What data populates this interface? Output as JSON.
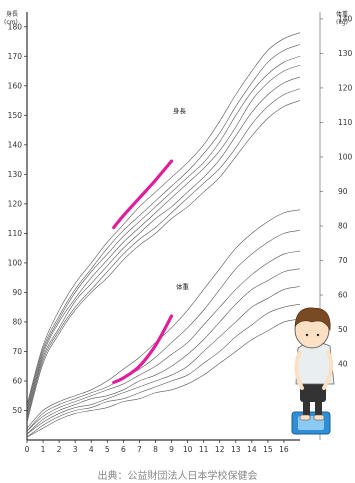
{
  "chart_data": {
    "type": "line",
    "x": {
      "ticks": [
        "0",
        "1",
        "2",
        "3",
        "4",
        "5",
        "6",
        "7",
        "8",
        "9",
        "10",
        "11",
        "12",
        "13",
        "14",
        "15",
        "16"
      ],
      "range": [
        0,
        17
      ]
    },
    "y_left": {
      "label_top": "身長",
      "label_unit": "(cm)",
      "ticks": [
        50,
        60,
        70,
        80,
        90,
        100,
        110,
        120,
        130,
        140,
        150,
        160,
        170,
        180
      ],
      "range": [
        40,
        185
      ]
    },
    "y_right": {
      "label_top": "体重",
      "label_unit": "(kg)",
      "ticks": [
        40,
        50,
        60,
        70,
        80,
        90,
        100,
        110,
        120,
        130,
        140
      ],
      "range": [
        18,
        142
      ]
    },
    "height_label": "身長",
    "weight_label": "体重",
    "colors": {
      "curve": "#555555",
      "highlight": "#e01e9a",
      "axis": "#333333"
    },
    "height_percentiles": [
      {
        "x": [
          0,
          1,
          2,
          3,
          4,
          5,
          6,
          7,
          8,
          9,
          10,
          11,
          12,
          13,
          14,
          15,
          16,
          17
        ],
        "y": [
          52,
          72,
          84,
          93,
          100,
          107,
          113,
          119,
          124,
          129,
          134,
          140,
          148,
          157,
          165,
          172,
          176,
          178
        ]
      },
      {
        "x": [
          0,
          1,
          2,
          3,
          4,
          5,
          6,
          7,
          8,
          9,
          10,
          11,
          12,
          13,
          14,
          15,
          16,
          17
        ],
        "y": [
          51,
          71,
          82,
          91,
          98,
          105,
          111,
          116,
          121,
          126,
          131,
          137,
          144,
          153,
          161,
          168,
          172,
          174
        ]
      },
      {
        "x": [
          0,
          1,
          2,
          3,
          4,
          5,
          6,
          7,
          8,
          9,
          10,
          11,
          12,
          13,
          14,
          15,
          16,
          17
        ],
        "y": [
          50,
          70,
          81,
          90,
          97,
          103,
          109,
          114,
          119,
          124,
          129,
          134,
          141,
          150,
          158,
          164,
          168,
          170
        ]
      },
      {
        "x": [
          0,
          1,
          2,
          3,
          4,
          5,
          6,
          7,
          8,
          9,
          10,
          11,
          12,
          13,
          14,
          15,
          16,
          17
        ],
        "y": [
          49,
          69,
          80,
          88,
          95,
          101,
          107,
          112,
          117,
          122,
          127,
          132,
          138,
          146,
          155,
          161,
          165,
          167
        ]
      },
      {
        "x": [
          0,
          1,
          2,
          3,
          4,
          5,
          6,
          7,
          8,
          9,
          10,
          11,
          12,
          13,
          14,
          15,
          16,
          17
        ],
        "y": [
          48,
          68,
          78,
          87,
          93,
          99,
          105,
          110,
          115,
          119,
          124,
          129,
          135,
          143,
          151,
          157,
          161,
          163
        ]
      },
      {
        "x": [
          0,
          1,
          2,
          3,
          4,
          5,
          6,
          7,
          8,
          9,
          10,
          11,
          12,
          13,
          14,
          15,
          16,
          17
        ],
        "y": [
          47,
          67,
          77,
          85,
          91,
          97,
          103,
          108,
          112,
          117,
          122,
          127,
          132,
          139,
          147,
          153,
          157,
          159
        ]
      },
      {
        "x": [
          0,
          1,
          2,
          3,
          4,
          5,
          6,
          7,
          8,
          9,
          10,
          11,
          12,
          13,
          14,
          15,
          16,
          17
        ],
        "y": [
          46,
          66,
          76,
          84,
          90,
          95,
          101,
          106,
          110,
          115,
          119,
          124,
          129,
          136,
          143,
          149,
          153,
          155
        ]
      }
    ],
    "weight_percentiles": [
      {
        "x": [
          0,
          1,
          2,
          3,
          4,
          5,
          6,
          7,
          8,
          9,
          10,
          11,
          12,
          13,
          14,
          15,
          16,
          17
        ],
        "y": [
          44,
          50,
          53,
          55,
          57,
          60,
          64,
          68,
          73,
          78,
          84,
          91,
          98,
          105,
          110,
          114,
          117,
          118
        ]
      },
      {
        "x": [
          0,
          1,
          2,
          3,
          4,
          5,
          6,
          7,
          8,
          9,
          10,
          11,
          12,
          13,
          14,
          15,
          16,
          17
        ],
        "y": [
          43,
          49,
          52,
          54,
          56,
          58,
          61,
          64,
          68,
          73,
          78,
          84,
          91,
          98,
          103,
          107,
          110,
          111
        ]
      },
      {
        "x": [
          0,
          1,
          2,
          3,
          4,
          5,
          6,
          7,
          8,
          9,
          10,
          11,
          12,
          13,
          14,
          15,
          16,
          17
        ],
        "y": [
          43,
          48,
          51,
          53,
          55,
          57,
          59,
          62,
          65,
          69,
          73,
          79,
          85,
          91,
          96,
          100,
          103,
          104
        ]
      },
      {
        "x": [
          0,
          1,
          2,
          3,
          4,
          5,
          6,
          7,
          8,
          9,
          10,
          11,
          12,
          13,
          14,
          15,
          16,
          17
        ],
        "y": [
          42,
          47,
          50,
          52,
          54,
          55,
          57,
          60,
          62,
          65,
          69,
          74,
          80,
          86,
          91,
          94,
          97,
          98
        ]
      },
      {
        "x": [
          0,
          1,
          2,
          3,
          4,
          5,
          6,
          7,
          8,
          9,
          10,
          11,
          12,
          13,
          14,
          15,
          16,
          17
        ],
        "y": [
          42,
          46,
          49,
          51,
          52,
          54,
          56,
          58,
          60,
          62,
          65,
          70,
          75,
          80,
          85,
          88,
          91,
          92
        ]
      },
      {
        "x": [
          0,
          1,
          2,
          3,
          4,
          5,
          6,
          7,
          8,
          9,
          10,
          11,
          12,
          13,
          14,
          15,
          16,
          17
        ],
        "y": [
          41,
          45,
          48,
          50,
          51,
          53,
          54,
          56,
          58,
          60,
          62,
          66,
          70,
          75,
          79,
          83,
          85,
          86
        ]
      },
      {
        "x": [
          0,
          1,
          2,
          3,
          4,
          5,
          6,
          7,
          8,
          9,
          10,
          11,
          12,
          13,
          14,
          15,
          16,
          17
        ],
        "y": [
          41,
          44,
          47,
          49,
          50,
          51,
          53,
          54,
          56,
          57,
          59,
          62,
          66,
          70,
          74,
          77,
          80,
          81
        ]
      }
    ],
    "height_highlight": {
      "x": [
        5.4,
        6,
        7,
        8,
        9
      ],
      "y": [
        112,
        116,
        122,
        128,
        134.5
      ]
    },
    "weight_highlight": {
      "x": [
        5.4,
        6,
        7,
        8,
        9
      ],
      "y": [
        59.5,
        61,
        65,
        72,
        82
      ]
    }
  },
  "source": "出典：公益財団法人日本学校保健会"
}
